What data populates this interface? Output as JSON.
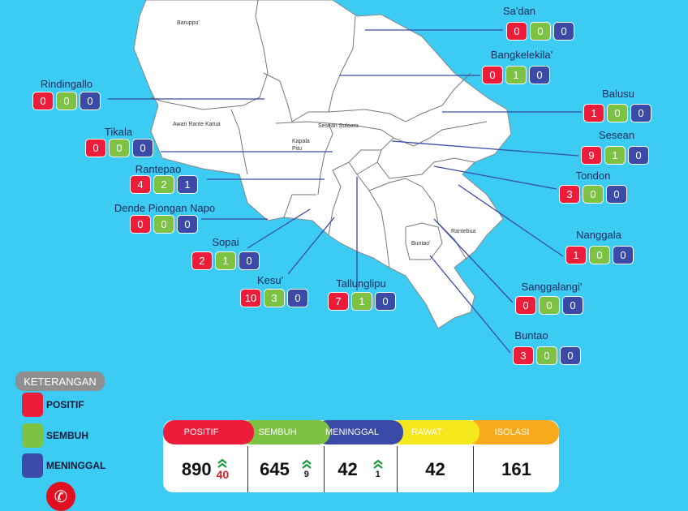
{
  "map_labels": [
    "Baruppu'",
    "Awan Rante Karua",
    "Sesean Suloara",
    "Kapala Pitu",
    "Buntao'",
    "Rantebua"
  ],
  "districts": [
    {
      "name": "Sa'dan",
      "positif": "0",
      "sembuh": "0",
      "meninggal": "0"
    },
    {
      "name": "Bangkelekila'",
      "positif": "0",
      "sembuh": "1",
      "meninggal": "0"
    },
    {
      "name": "Balusu",
      "positif": "1",
      "sembuh": "0",
      "meninggal": "0"
    },
    {
      "name": "Sesean",
      "positif": "9",
      "sembuh": "1",
      "meninggal": "0"
    },
    {
      "name": "Tondon",
      "positif": "3",
      "sembuh": "0",
      "meninggal": "0"
    },
    {
      "name": "Nanggala",
      "positif": "1",
      "sembuh": "0",
      "meninggal": "0"
    },
    {
      "name": "Sanggalangi'",
      "positif": "0",
      "sembuh": "0",
      "meninggal": "0"
    },
    {
      "name": "Buntao",
      "positif": "3",
      "sembuh": "0",
      "meninggal": "0"
    },
    {
      "name": "Tallunglipu",
      "positif": "7",
      "sembuh": "1",
      "meninggal": "0"
    },
    {
      "name": "Kesu'",
      "positif": "10",
      "sembuh": "3",
      "meninggal": "0"
    },
    {
      "name": "Sopai",
      "positif": "2",
      "sembuh": "1",
      "meninggal": "0"
    },
    {
      "name": "Dende Piongan Napo",
      "positif": "0",
      "sembuh": "0",
      "meninggal": "0"
    },
    {
      "name": "Rantepao",
      "positif": "4",
      "sembuh": "2",
      "meninggal": "1"
    },
    {
      "name": "Tikala",
      "positif": "0",
      "sembuh": "0",
      "meninggal": "0"
    },
    {
      "name": "Rindingallo",
      "positif": "0",
      "sembuh": "0",
      "meninggal": "0"
    }
  ],
  "legend": {
    "title": "KETERANGAN",
    "items": [
      {
        "label": "POSITIF",
        "color": "#ec1c3a"
      },
      {
        "label": "SEMBUH",
        "color": "#7dc242"
      },
      {
        "label": "MENINGGAL",
        "color": "#3a4aa6"
      }
    ],
    "phone_icon": "phone-icon"
  },
  "summary": [
    {
      "label": "POSITIF",
      "value": "890",
      "change": "40",
      "color": "#ec1c3a",
      "change_color": "#d8202a"
    },
    {
      "label": "SEMBUH",
      "value": "645",
      "change": "9",
      "color": "#7dc242",
      "change_color": "#222"
    },
    {
      "label": "MENINGGAL",
      "value": "42",
      "change": "1",
      "color": "#3a4aa6",
      "change_color": "#222"
    },
    {
      "label": "RAWAT",
      "value": "42",
      "color": "#f4e81c"
    },
    {
      "label": "ISOLASI",
      "value": "161",
      "color": "#f8a91c"
    }
  ]
}
